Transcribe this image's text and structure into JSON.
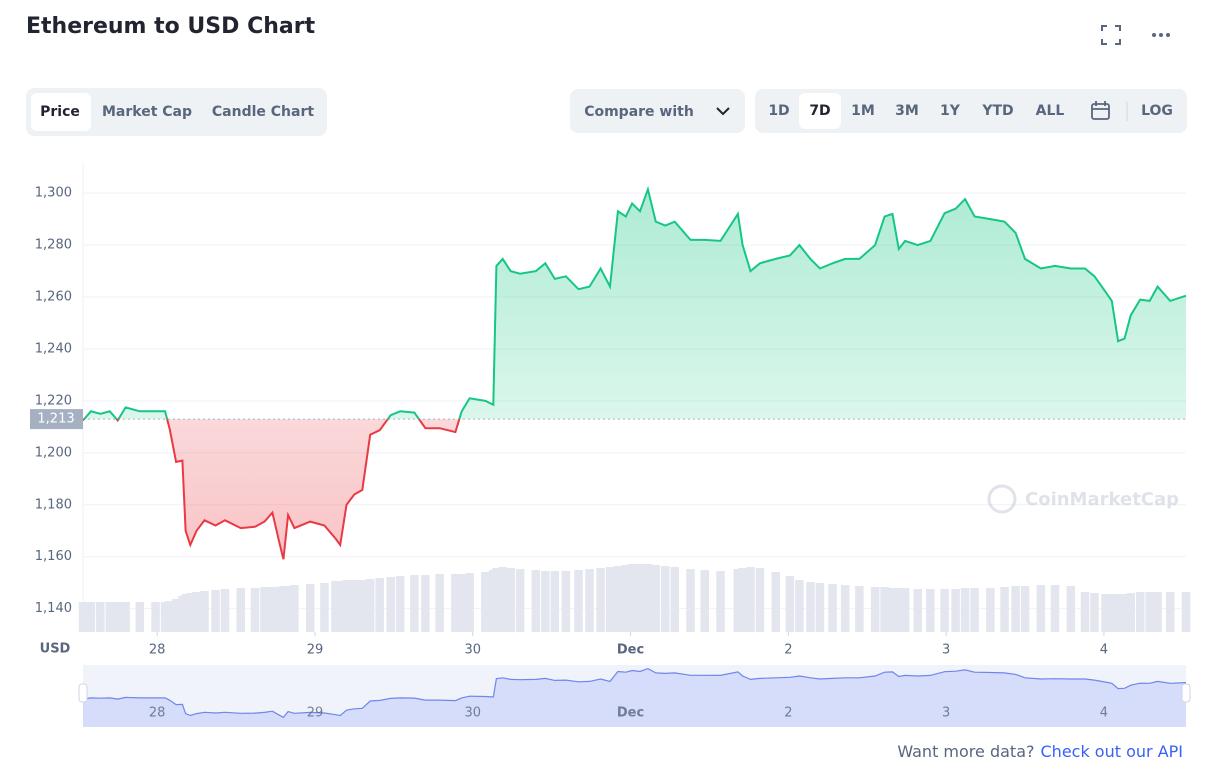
{
  "ui": {
    "title": "Ethereum to USD Chart",
    "tabs": [
      "Price",
      "Market Cap",
      "Candle Chart"
    ],
    "compare": "Compare with",
    "ranges": [
      "1D",
      "7D",
      "1M",
      "3M",
      "1Y",
      "YTD",
      "ALL"
    ],
    "log": "LOG",
    "watermark": "CoinMarketCap",
    "footer_text": "Want more data?",
    "footer_link": "Check out our API"
  },
  "chart_data": {
    "type": "area",
    "y_unit": "USD",
    "xlim": [
      27.53,
      34.52
    ],
    "xticks": [
      28,
      29,
      30,
      {
        "value": 31,
        "label": "Dec"
      },
      {
        "value": 32,
        "label": "2"
      },
      {
        "value": 33,
        "label": "3"
      },
      {
        "value": 34,
        "label": "4"
      }
    ],
    "ylim": [
      1131,
      1312
    ],
    "yticks": [
      {
        "value": 1140,
        "label": "1,140"
      },
      {
        "value": 1160,
        "label": "1,160"
      },
      {
        "value": 1180,
        "label": "1,180"
      },
      {
        "value": 1200,
        "label": "1,200"
      },
      {
        "value": 1220,
        "label": "1,220"
      },
      {
        "value": 1240,
        "label": "1,240"
      },
      {
        "value": 1260,
        "label": "1,260"
      },
      {
        "value": 1280,
        "label": "1,280"
      },
      {
        "value": 1300,
        "label": "1,300"
      }
    ],
    "grid": true,
    "reference": {
      "value": 1213,
      "label": "1,213"
    },
    "up_color": "#16c784",
    "down_color": "#ea3943",
    "x": [
      27.53,
      27.58,
      27.64,
      27.7,
      27.75,
      27.8,
      27.89,
      27.99,
      28.05,
      28.08,
      28.12,
      28.16,
      28.18,
      28.21,
      28.25,
      28.3,
      28.37,
      28.43,
      28.53,
      28.62,
      28.68,
      28.73,
      28.77,
      28.8,
      28.83,
      28.87,
      28.97,
      29.06,
      29.13,
      29.16,
      29.2,
      29.25,
      29.3,
      29.35,
      29.41,
      29.48,
      29.54,
      29.63,
      29.7,
      29.79,
      29.89,
      29.93,
      29.98,
      30.08,
      30.13,
      30.15,
      30.19,
      30.24,
      30.3,
      30.4,
      30.46,
      30.52,
      30.59,
      30.67,
      30.74,
      30.81,
      30.87,
      30.92,
      30.97,
      31.01,
      31.06,
      31.11,
      31.16,
      31.22,
      31.28,
      31.38,
      31.47,
      31.57,
      31.68,
      31.71,
      31.76,
      31.82,
      31.92,
      32.01,
      32.07,
      32.14,
      32.2,
      32.28,
      32.36,
      32.45,
      32.55,
      32.61,
      32.66,
      32.7,
      32.74,
      32.82,
      32.9,
      32.99,
      33.06,
      33.12,
      33.18,
      33.28,
      33.37,
      33.44,
      33.5,
      33.6,
      33.69,
      33.79,
      33.88,
      33.94,
      34.01,
      34.05,
      34.09,
      34.13,
      34.17,
      34.23,
      34.29,
      34.34,
      34.42,
      34.52
    ],
    "series": [
      {
        "name": "Price",
        "values": [
          1212.5,
          1216,
          1215,
          1216,
          1212.5,
          1217.5,
          1216,
          1216,
          1216,
          1209,
          1196.5,
          1197,
          1170,
          1164.5,
          1170,
          1174,
          1172,
          1174,
          1171,
          1171.5,
          1173.5,
          1177,
          1166.5,
          1159,
          1176,
          1171,
          1173.5,
          1172,
          1167,
          1164.5,
          1180,
          1184,
          1185.7,
          1207,
          1208.7,
          1214.5,
          1216,
          1215.5,
          1209.5,
          1209.5,
          1208,
          1216,
          1221,
          1220,
          1218.5,
          1272,
          1274.7,
          1270,
          1269,
          1270,
          1273,
          1267,
          1268,
          1263,
          1264,
          1271,
          1264,
          1293,
          1291,
          1296,
          1293,
          1301.5,
          1289,
          1287.5,
          1289,
          1282,
          1282,
          1281.6,
          1292,
          1280,
          1270,
          1273,
          1274.7,
          1276,
          1280,
          1274.7,
          1271,
          1273,
          1274.7,
          1274.7,
          1280,
          1291,
          1292,
          1278.5,
          1281.6,
          1280,
          1281.6,
          1292.3,
          1294,
          1297.7,
          1291,
          1290,
          1289,
          1284.7,
          1274.7,
          1271,
          1272,
          1271,
          1271,
          1268,
          1262,
          1258.5,
          1243,
          1244,
          1253,
          1259,
          1258.5,
          1264,
          1258.5,
          1260.5
        ]
      },
      {
        "name": "Volume",
        "axis": "y2",
        "color": "#e3e6ee",
        "values": [
          30,
          30,
          30,
          30,
          30,
          30,
          30,
          30,
          30,
          31,
          33,
          36,
          38,
          39,
          40,
          41,
          42,
          43,
          44,
          44,
          45,
          45,
          45,
          46,
          46,
          47,
          48,
          49,
          51,
          51,
          52,
          52,
          52,
          53,
          54,
          55,
          56,
          57,
          57,
          58,
          58,
          58,
          59,
          60,
          62,
          64,
          65,
          64,
          63,
          62,
          61,
          61,
          61,
          62,
          63,
          64,
          65,
          66,
          67,
          68,
          68,
          68,
          67,
          66,
          65,
          63,
          62,
          61,
          63,
          64,
          65,
          64,
          60,
          56,
          52,
          50,
          49,
          48,
          47,
          46,
          45,
          45,
          44,
          44,
          44,
          43,
          43,
          43,
          43,
          44,
          44,
          44,
          45,
          46,
          46,
          47,
          47,
          46,
          40,
          39,
          38,
          38,
          38,
          38,
          39,
          40,
          40,
          40,
          40,
          40
        ]
      }
    ],
    "y2lim": [
      0,
      470
    ]
  }
}
